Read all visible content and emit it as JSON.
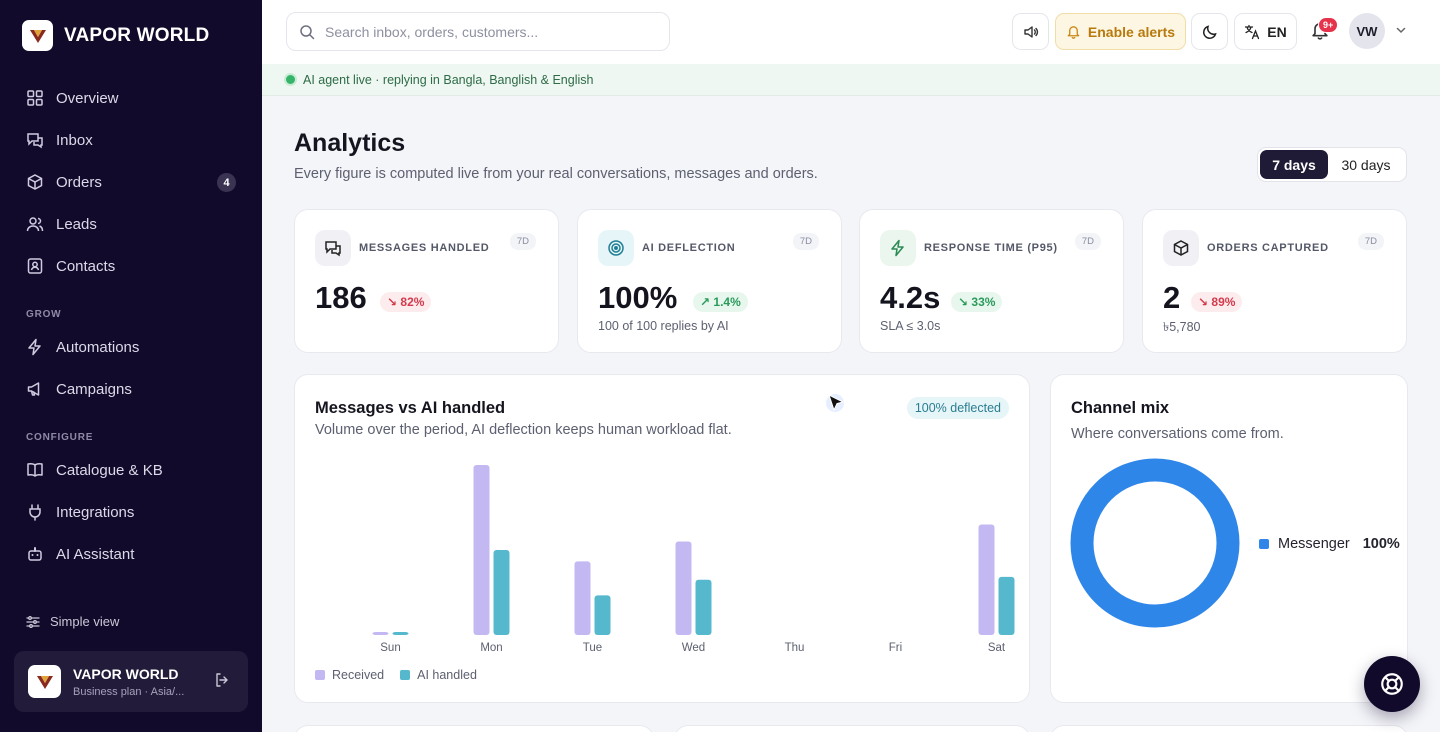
{
  "brand": {
    "name": "VAPOR WORLD"
  },
  "sidebar": {
    "items": [
      {
        "label": "Overview",
        "icon": "grid-icon"
      },
      {
        "label": "Inbox",
        "icon": "chat-icon"
      },
      {
        "label": "Orders",
        "icon": "box-icon",
        "badge": "4"
      },
      {
        "label": "Leads",
        "icon": "users-icon"
      },
      {
        "label": "Contacts",
        "icon": "contact-card-icon"
      }
    ],
    "grow_label": "GROW",
    "grow_items": [
      {
        "label": "Automations",
        "icon": "bolt-icon"
      },
      {
        "label": "Campaigns",
        "icon": "megaphone-icon"
      }
    ],
    "configure_label": "CONFIGURE",
    "configure_items": [
      {
        "label": "Catalogue & KB",
        "icon": "book-icon"
      },
      {
        "label": "Integrations",
        "icon": "plug-icon"
      },
      {
        "label": "AI Assistant",
        "icon": "bot-icon"
      }
    ],
    "simple_view": "Simple view",
    "account": {
      "name": "VAPOR WORLD",
      "plan": "Business plan · Asia/..."
    }
  },
  "topbar": {
    "search_placeholder": "Search inbox, orders, customers...",
    "alerts_label": "Enable alerts",
    "lang_label": "EN",
    "notif_badge": "9+",
    "avatar_initials": "VW"
  },
  "status": {
    "text": "AI agent live · replying in Bangla, Banglish & English"
  },
  "page": {
    "title": "Analytics",
    "subtitle": "Every figure is computed live from your real conversations, messages and orders.",
    "range_options": [
      "7 days",
      "30 days"
    ],
    "range_selected": "7 days"
  },
  "kpis": [
    {
      "label": "MESSAGES HANDLED",
      "tag": "7D",
      "value": "186",
      "delta": "82%",
      "trend": "down",
      "sub": ""
    },
    {
      "label": "AI DEFLECTION",
      "tag": "7D",
      "value": "100%",
      "delta": "1.4%",
      "trend": "up",
      "sub": "100 of 100 replies by AI"
    },
    {
      "label": "RESPONSE TIME (P95)",
      "tag": "7D",
      "value": "4.2s",
      "delta": "33%",
      "trend": "up",
      "sub": "SLA ≤ 3.0s"
    },
    {
      "label": "ORDERS CAPTURED",
      "tag": "7D",
      "value": "2",
      "delta": "89%",
      "trend": "down",
      "sub": "৳5,780"
    }
  ],
  "messages_chart": {
    "title": "Messages vs AI handled",
    "subtitle": "Volume over the period, AI deflection keeps human workload flat.",
    "pill": "100% deflected",
    "legend": [
      "Received",
      "AI handled"
    ]
  },
  "channel_mix": {
    "title": "Channel mix",
    "subtitle": "Where conversations come from.",
    "legend_label": "Messenger",
    "legend_value": "100%"
  },
  "chart_data": [
    {
      "type": "bar",
      "categories": [
        "Sun",
        "Mon",
        "Tue",
        "Wed",
        "Thu",
        "Fri",
        "Sat"
      ],
      "series": [
        {
          "name": "Received",
          "values": [
            1,
            60,
            26,
            33,
            0,
            0,
            39
          ],
          "color": "#c4b8f3"
        },
        {
          "name": "AI handled",
          "values": [
            1,
            30,
            14,
            19.5,
            0,
            0,
            20.5
          ],
          "color": "#56b8cc"
        }
      ],
      "ylim": [
        0,
        60
      ],
      "grid": false,
      "legend": "bottom-left"
    },
    {
      "type": "pie",
      "categories": [
        "Messenger"
      ],
      "values": [
        100
      ],
      "colors": [
        "#2f86e9"
      ],
      "legend": "right"
    }
  ]
}
